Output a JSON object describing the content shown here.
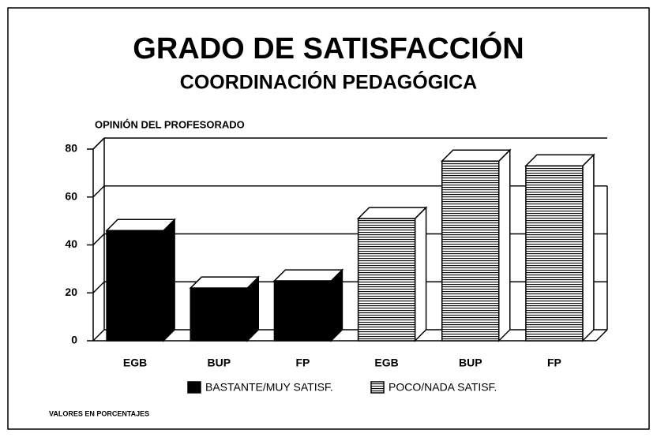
{
  "chart_data": {
    "type": "bar3d",
    "title": "GRADO DE SATISFACCIÓN",
    "subtitle": "COORDINACIÓN PEDAGÓGICA",
    "y_label": "OPINIÓN DEL PROFESORADO",
    "note": "VALORES EN PORCENTAJES",
    "categories": [
      "EGB",
      "BUP",
      "FP",
      "EGB",
      "BUP",
      "FP"
    ],
    "series": [
      {
        "name": "BASTANTE/MUY SATISF.",
        "color": "#000000",
        "pattern": "solid",
        "values": [
          46,
          22,
          25,
          null,
          null,
          null
        ]
      },
      {
        "name": "POCO/NADA SATISF.",
        "color": "#000000",
        "pattern": "horizontal-stripes",
        "values": [
          null,
          null,
          null,
          51,
          75,
          73
        ]
      }
    ],
    "ylim": [
      0,
      80
    ],
    "yticks": [
      0,
      20,
      40,
      60,
      80
    ],
    "grid": true
  }
}
